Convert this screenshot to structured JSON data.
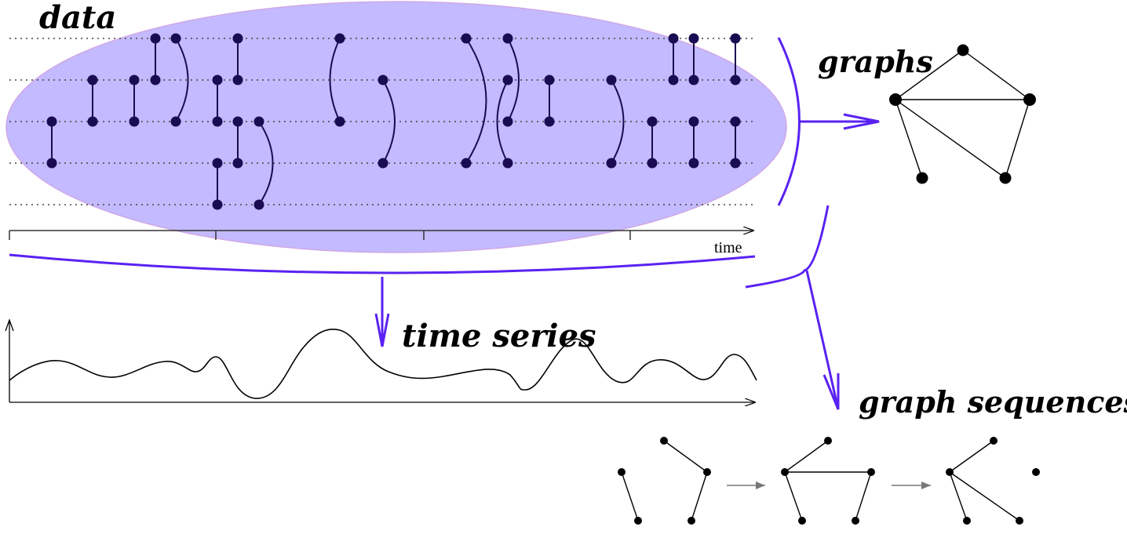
{
  "labels": {
    "data": "data",
    "graphs": "graphs",
    "time_series": "time series",
    "graph_sequences": "graph sequences",
    "time_axis": "time"
  },
  "colors": {
    "ellipse_fill": "#c3baff",
    "ellipse_stroke": "#d0a8e6",
    "accent": "#5a22f2",
    "node": "#1a0c52",
    "dotted": "#444444",
    "graph_node": "#000000",
    "seq_arrow": "#777777"
  }
}
